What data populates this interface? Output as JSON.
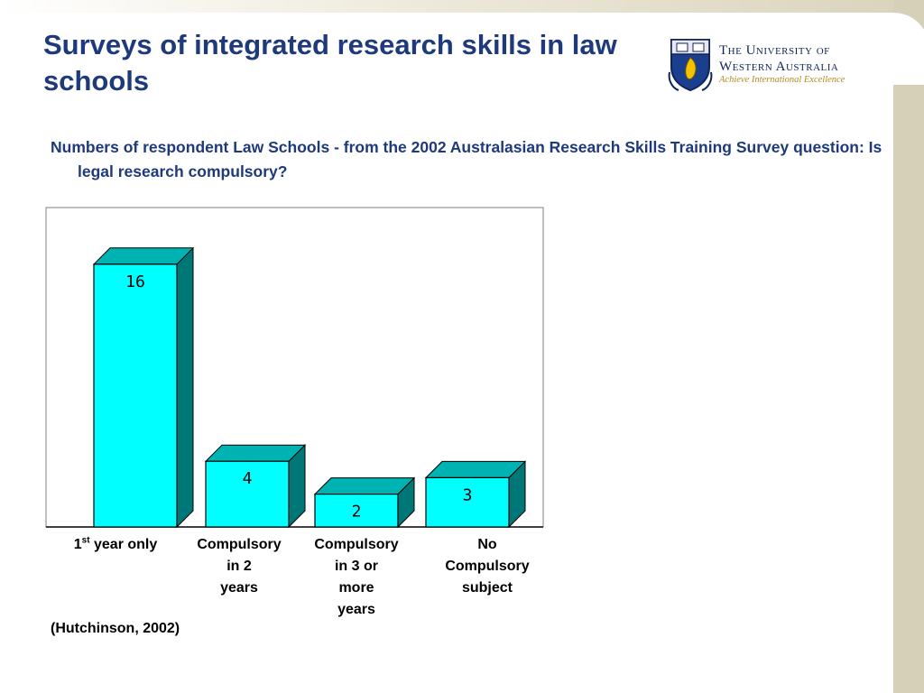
{
  "slide": {
    "title": "Surveys of integrated research skills in law schools",
    "question": "Numbers of respondent Law Schools  - from the 2002 Australasian Research Skills Training Survey question:  Is legal research compulsory?",
    "source": "(Hutchinson, 2002)"
  },
  "logo": {
    "line1": "The University of",
    "line2": "Western Australia",
    "motto": "Achieve International Excellence",
    "colors": {
      "navy": "#10245a",
      "gold": "#c9a227"
    }
  },
  "category_labels": [
    {
      "ordinal_num": "1",
      "ordinal_sup": "st",
      "rest": " year only"
    },
    {
      "lines": [
        "Compulsory",
        "in 2",
        "years"
      ]
    },
    {
      "lines": [
        "Compulsory",
        "in 3 or",
        "more",
        "years"
      ]
    },
    {
      "lines": [
        "No",
        "Compulsory",
        "subject"
      ]
    }
  ],
  "chart_data": {
    "type": "bar",
    "categories": [
      "1st year only",
      "Compulsory in 2 years",
      "Compulsory in 3 or more years",
      "No Compulsory subject"
    ],
    "values": [
      16,
      4,
      2,
      3
    ],
    "data_labels": [
      "16",
      "4",
      "2",
      "3"
    ],
    "ylim": [
      0,
      18
    ],
    "grid": false,
    "legend": "none",
    "colors": {
      "front": "#00ffff",
      "side": "#007777",
      "top": "#00b3b3",
      "outline": "#000000",
      "frame": "#808080"
    }
  }
}
